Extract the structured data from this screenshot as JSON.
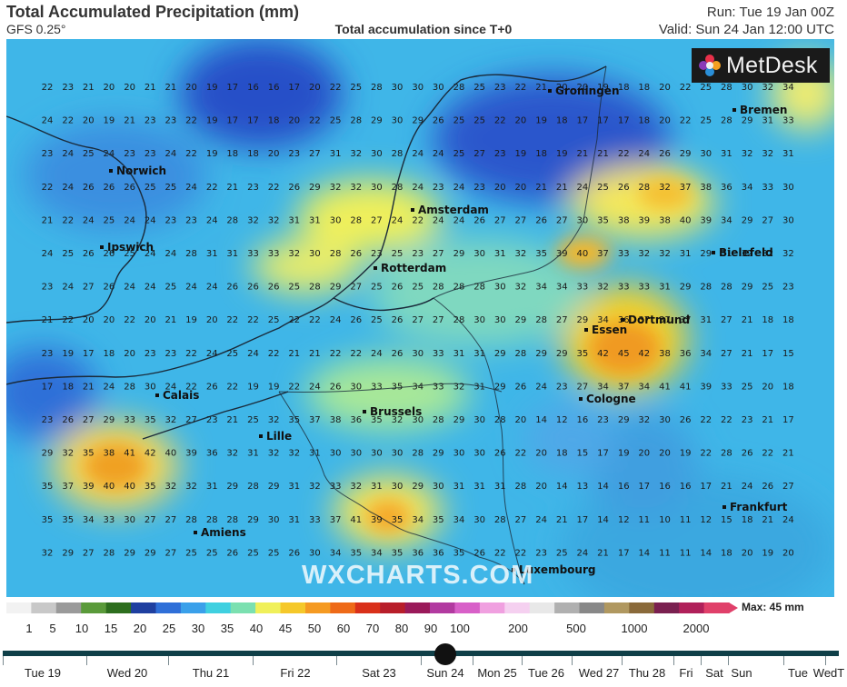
{
  "header": {
    "title": "Total Accumulated Precipitation (mm)",
    "model": "GFS 0.25°",
    "subtitle": "Total accumulation since T+0",
    "run": "Run: Tue 19 Jan 00Z",
    "valid": "Valid: Sun 24 Jan 12:00 UTC"
  },
  "brand": {
    "logo": "MetDesk",
    "watermark": "WXCHARTS.COM"
  },
  "cities": [
    {
      "name": "Groningen"
    },
    {
      "name": "Bremen"
    },
    {
      "name": "Norwich"
    },
    {
      "name": "Amsterdam"
    },
    {
      "name": "Ipswich"
    },
    {
      "name": "Bielefeld"
    },
    {
      "name": "Rotterdam"
    },
    {
      "name": "Dortmund"
    },
    {
      "name": "Essen"
    },
    {
      "name": "Calais"
    },
    {
      "name": "Cologne"
    },
    {
      "name": "Brussels"
    },
    {
      "name": "Lille"
    },
    {
      "name": "Frankfurt"
    },
    {
      "name": "Amiens"
    },
    {
      "name": "Luxembourg"
    }
  ],
  "grid": [
    [
      22,
      23,
      21,
      20,
      20,
      21,
      21,
      20,
      19,
      17,
      16,
      16,
      17,
      20,
      22,
      25,
      28,
      30,
      30,
      30,
      28,
      25,
      23,
      22,
      21,
      20,
      20,
      19,
      18,
      18,
      20,
      22,
      25,
      28,
      30,
      32,
      34
    ],
    [
      24,
      22,
      20,
      19,
      21,
      23,
      23,
      22,
      19,
      17,
      17,
      18,
      20,
      22,
      25,
      28,
      29,
      30,
      29,
      26,
      25,
      25,
      22,
      20,
      19,
      18,
      17,
      17,
      17,
      18,
      20,
      22,
      25,
      28,
      29,
      31,
      33
    ],
    [
      23,
      24,
      25,
      24,
      23,
      23,
      24,
      22,
      19,
      18,
      18,
      20,
      23,
      27,
      31,
      32,
      30,
      28,
      24,
      24,
      25,
      27,
      23,
      19,
      18,
      19,
      21,
      21,
      22,
      24,
      26,
      29,
      30,
      31,
      32,
      32,
      31
    ],
    [
      22,
      24,
      26,
      26,
      26,
      25,
      25,
      24,
      22,
      21,
      23,
      22,
      26,
      29,
      32,
      32,
      30,
      28,
      24,
      23,
      24,
      23,
      20,
      20,
      21,
      21,
      24,
      25,
      26,
      28,
      32,
      37,
      38,
      36,
      34,
      33,
      30
    ],
    [
      21,
      22,
      24,
      25,
      24,
      24,
      23,
      23,
      24,
      28,
      32,
      32,
      31,
      31,
      30,
      28,
      27,
      24,
      22,
      24,
      24,
      26,
      27,
      27,
      26,
      27,
      30,
      35,
      38,
      39,
      38,
      40,
      39,
      34,
      29,
      27,
      30
    ],
    [
      24,
      25,
      26,
      26,
      25,
      24,
      24,
      28,
      31,
      31,
      33,
      33,
      32,
      30,
      28,
      26,
      23,
      25,
      23,
      27,
      29,
      30,
      31,
      32,
      35,
      39,
      40,
      37,
      33,
      32,
      32,
      31,
      29,
      31,
      32,
      32,
      32
    ],
    [
      23,
      24,
      27,
      26,
      24,
      24,
      25,
      24,
      24,
      26,
      26,
      26,
      25,
      28,
      29,
      27,
      25,
      26,
      25,
      28,
      28,
      28,
      30,
      32,
      34,
      34,
      33,
      32,
      33,
      33,
      31,
      29,
      28,
      28,
      29,
      25,
      23
    ],
    [
      21,
      22,
      20,
      20,
      22,
      20,
      21,
      19,
      20,
      22,
      22,
      25,
      22,
      22,
      24,
      26,
      25,
      26,
      27,
      27,
      28,
      30,
      30,
      29,
      28,
      27,
      29,
      34,
      36,
      37,
      37,
      37,
      31,
      27,
      21,
      18,
      18
    ],
    [
      23,
      19,
      17,
      18,
      20,
      23,
      23,
      22,
      24,
      25,
      24,
      22,
      21,
      21,
      22,
      22,
      24,
      26,
      30,
      33,
      31,
      31,
      29,
      28,
      29,
      29,
      35,
      42,
      45,
      42,
      38,
      36,
      34,
      27,
      21,
      17,
      15
    ],
    [
      17,
      18,
      21,
      24,
      28,
      30,
      24,
      22,
      26,
      22,
      19,
      19,
      22,
      24,
      26,
      30,
      33,
      35,
      34,
      33,
      32,
      31,
      29,
      26,
      24,
      23,
      27,
      34,
      37,
      34,
      41,
      41,
      39,
      33,
      25,
      20,
      18
    ],
    [
      23,
      26,
      27,
      29,
      33,
      35,
      32,
      27,
      23,
      21,
      25,
      32,
      35,
      37,
      38,
      36,
      35,
      32,
      30,
      28,
      29,
      30,
      28,
      20,
      14,
      12,
      16,
      23,
      29,
      32,
      30,
      26,
      22,
      22,
      23,
      21,
      17
    ],
    [
      29,
      32,
      35,
      38,
      41,
      42,
      40,
      39,
      36,
      32,
      31,
      32,
      32,
      31,
      30,
      30,
      30,
      30,
      28,
      29,
      30,
      30,
      26,
      22,
      20,
      18,
      15,
      17,
      19,
      20,
      20,
      19,
      22,
      28,
      26,
      22,
      21
    ],
    [
      35,
      37,
      39,
      40,
      40,
      35,
      32,
      32,
      31,
      29,
      28,
      29,
      31,
      32,
      33,
      32,
      31,
      30,
      29,
      30,
      31,
      31,
      31,
      28,
      20,
      14,
      13,
      14,
      16,
      17,
      16,
      16,
      17,
      21,
      24,
      26,
      27
    ],
    [
      35,
      35,
      34,
      33,
      30,
      27,
      27,
      28,
      28,
      28,
      29,
      30,
      31,
      33,
      37,
      41,
      39,
      35,
      34,
      35,
      34,
      30,
      28,
      27,
      24,
      21,
      17,
      14,
      12,
      11,
      10,
      11,
      12,
      15,
      18,
      21,
      24
    ],
    [
      32,
      29,
      27,
      28,
      29,
      29,
      27,
      25,
      25,
      26,
      25,
      25,
      26,
      30,
      34,
      35,
      34,
      35,
      36,
      36,
      35,
      26,
      22,
      22,
      23,
      25,
      24,
      21,
      17,
      14,
      11,
      11,
      14,
      18,
      20,
      19,
      20
    ]
  ],
  "legend": {
    "max_label": "Max: 45 mm",
    "ticks": [
      "1",
      "5",
      "10",
      "15",
      "20",
      "25",
      "30",
      "35",
      "40",
      "45",
      "50",
      "60",
      "70",
      "80",
      "90",
      "100",
      "200",
      "500",
      "1000",
      "2000"
    ],
    "colors": [
      "#f2f2f2",
      "#c8c8c8",
      "#9a9a9a",
      "#5a9a3a",
      "#2d6e1e",
      "#1f3fa0",
      "#2f6fd8",
      "#3aa0ea",
      "#3fd0e0",
      "#7be0b0",
      "#f0f05a",
      "#f5c82a",
      "#f59a22",
      "#ee6a18",
      "#d9301a",
      "#b81e2a",
      "#9a1a5a",
      "#b23aa0",
      "#d860c8",
      "#f0a0e0",
      "#f5d0f0",
      "#e8e8e8",
      "#b0b0b0",
      "#888888",
      "#b09860",
      "#8a6a3a",
      "#7a2050",
      "#b0205a",
      "#e0406a"
    ]
  },
  "timeline": {
    "days": [
      "Tue 19",
      "Wed 20",
      "Thu 21",
      "Fri 22",
      "Sat 23",
      "Sun 24",
      "Mon 25",
      "Tue 26",
      "Wed 27",
      "Thu 28",
      "Fri",
      "Sat",
      "Sun",
      "Tue",
      "WedT"
    ],
    "selected": "Sun 24"
  }
}
